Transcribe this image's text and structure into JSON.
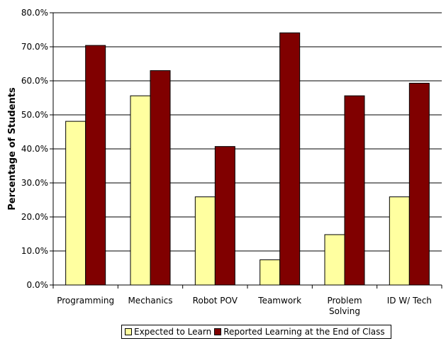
{
  "chart_data": {
    "type": "bar",
    "categories": [
      "Programming",
      "Mechanics",
      "Robot POV",
      "Teamwork",
      "Problem Solving",
      "ID W/ Tech"
    ],
    "category_lines": [
      [
        "Programming"
      ],
      [
        "Mechanics"
      ],
      [
        "Robot POV"
      ],
      [
        "Teamwork"
      ],
      [
        "Problem",
        "Solving"
      ],
      [
        "ID W/ Tech"
      ]
    ],
    "series": [
      {
        "name": "Expected to Learn",
        "values": [
          48.1,
          55.6,
          25.9,
          7.4,
          14.8,
          25.9
        ],
        "color": "#ffffa0"
      },
      {
        "name": "Reported Learning at the End of Class",
        "values": [
          70.4,
          63.0,
          40.7,
          74.1,
          55.6,
          59.3
        ],
        "color": "#800000"
      }
    ],
    "ylabel": "Percentage of Students",
    "xlabel": "",
    "ylim": [
      0,
      80
    ],
    "yticks": [
      "0.0%",
      "10.0%",
      "20.0%",
      "30.0%",
      "40.0%",
      "50.0%",
      "60.0%",
      "70.0%",
      "80.0%"
    ],
    "grid": true,
    "legend_position": "bottom"
  }
}
